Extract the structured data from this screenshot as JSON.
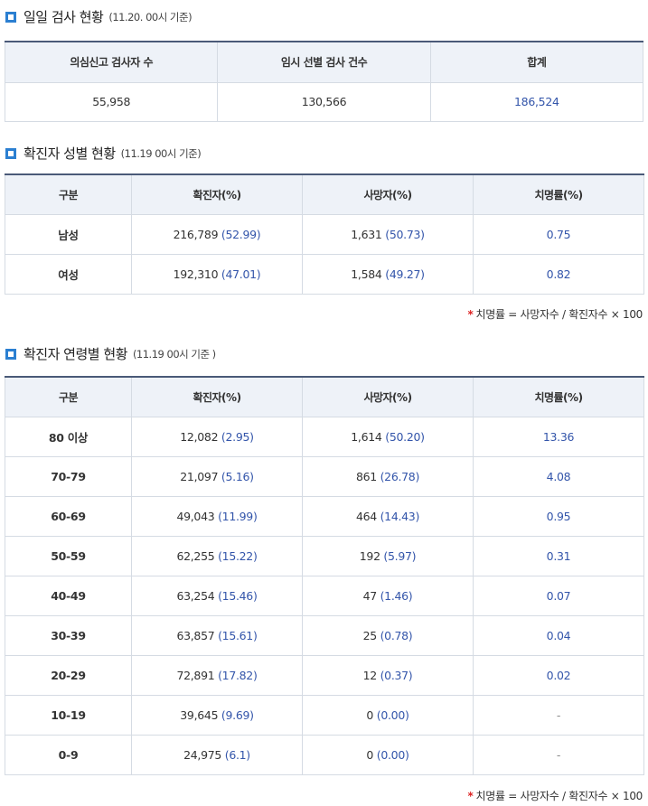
{
  "daily": {
    "title": "일일 검사 현황",
    "subtitle": "(11.20. 00시 기준)",
    "headers": [
      "의심신고 검사자 수",
      "임시 선별 검사 건수",
      "합계"
    ],
    "values": [
      "55,958",
      "130,566",
      "186,524"
    ]
  },
  "gender": {
    "title": "확진자 성별 현황",
    "subtitle": "(11.19 00시 기준)",
    "headers": [
      "구분",
      "확진자(%)",
      "사망자(%)",
      "치명률(%)"
    ],
    "rows": [
      {
        "label": "남성",
        "confirmed": "216,789",
        "confirmed_pct": "(52.99)",
        "deaths": "1,631",
        "deaths_pct": "(50.73)",
        "fatality": "0.75"
      },
      {
        "label": "여성",
        "confirmed": "192,310",
        "confirmed_pct": "(47.01)",
        "deaths": "1,584",
        "deaths_pct": "(49.27)",
        "fatality": "0.82"
      }
    ],
    "footnote": "치명률 = 사망자수 / 확진자수 × 100"
  },
  "age": {
    "title": "확진자 연령별 현황",
    "subtitle": "(11.19 00시 기준 )",
    "headers": [
      "구분",
      "확진자(%)",
      "사망자(%)",
      "치명률(%)"
    ],
    "rows": [
      {
        "label": "80 이상",
        "confirmed": "12,082",
        "confirmed_pct": "(2.95)",
        "deaths": "1,614",
        "deaths_pct": "(50.20)",
        "fatality": "13.36"
      },
      {
        "label": "70-79",
        "confirmed": "21,097",
        "confirmed_pct": "(5.16)",
        "deaths": "861",
        "deaths_pct": "(26.78)",
        "fatality": "4.08"
      },
      {
        "label": "60-69",
        "confirmed": "49,043",
        "confirmed_pct": "(11.99)",
        "deaths": "464",
        "deaths_pct": "(14.43)",
        "fatality": "0.95"
      },
      {
        "label": "50-59",
        "confirmed": "62,255",
        "confirmed_pct": "(15.22)",
        "deaths": "192",
        "deaths_pct": "(5.97)",
        "fatality": "0.31"
      },
      {
        "label": "40-49",
        "confirmed": "63,254",
        "confirmed_pct": "(15.46)",
        "deaths": "47",
        "deaths_pct": "(1.46)",
        "fatality": "0.07"
      },
      {
        "label": "30-39",
        "confirmed": "63,857",
        "confirmed_pct": "(15.61)",
        "deaths": "25",
        "deaths_pct": "(0.78)",
        "fatality": "0.04"
      },
      {
        "label": "20-29",
        "confirmed": "72,891",
        "confirmed_pct": "(17.82)",
        "deaths": "12",
        "deaths_pct": "(0.37)",
        "fatality": "0.02"
      },
      {
        "label": "10-19",
        "confirmed": "39,645",
        "confirmed_pct": "(9.69)",
        "deaths": "0",
        "deaths_pct": "(0.00)",
        "fatality": "-"
      },
      {
        "label": "0-9",
        "confirmed": "24,975",
        "confirmed_pct": "(6.1)",
        "deaths": "0",
        "deaths_pct": "(0.00)",
        "fatality": "-"
      }
    ],
    "footnote": "치명률 = 사망자수 / 확진자수 × 100"
  },
  "colors": {
    "accent": "#2b7fd1",
    "header_bg": "#eef2f8",
    "value_blue": "#3355aa",
    "footnote_star": "#dd2222"
  }
}
